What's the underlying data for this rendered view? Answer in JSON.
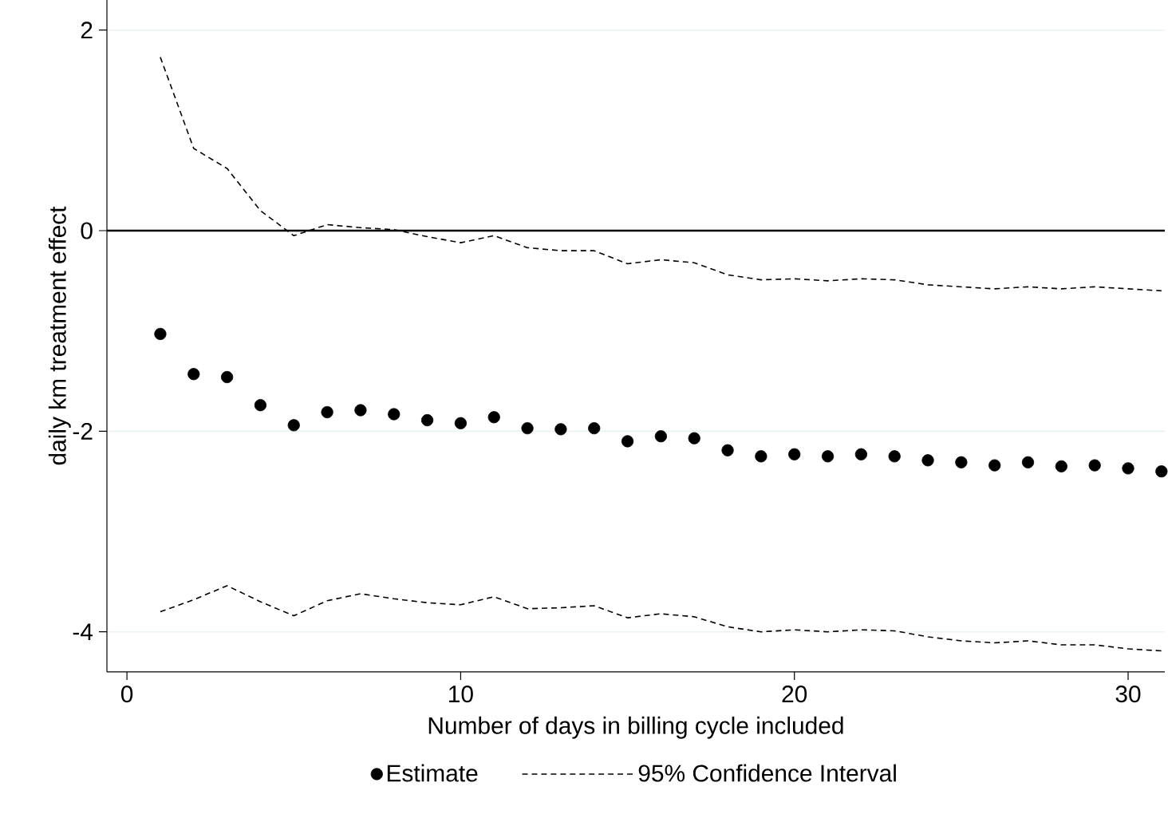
{
  "chart_data": {
    "type": "scatter",
    "xlabel": "Number of days in billing cycle included",
    "ylabel": "daily km treatment effect",
    "x": [
      1,
      2,
      3,
      4,
      5,
      6,
      7,
      8,
      9,
      10,
      11,
      12,
      13,
      14,
      15,
      16,
      17,
      18,
      19,
      20,
      21,
      22,
      23,
      24,
      25,
      26,
      27,
      28,
      29,
      30,
      31
    ],
    "series": [
      {
        "name": "Estimate",
        "color": "#000000",
        "marker": "circle",
        "values": [
          -1.03,
          -1.43,
          -1.46,
          -1.74,
          -1.94,
          -1.81,
          -1.79,
          -1.83,
          -1.89,
          -1.92,
          -1.86,
          -1.97,
          -1.98,
          -1.97,
          -2.1,
          -2.05,
          -2.07,
          -2.19,
          -2.25,
          -2.23,
          -2.25,
          -2.23,
          -2.25,
          -2.29,
          -2.31,
          -2.34,
          -2.31,
          -2.35,
          -2.34,
          -2.37,
          -2.4
        ]
      },
      {
        "name": "95% Confidence Interval",
        "type": "line",
        "color": "#000000",
        "line_style": "dashed",
        "marker": "none",
        "values": [
          1.73,
          0.82,
          0.62,
          0.2,
          -0.05,
          0.06,
          0.03,
          0.01,
          -0.06,
          -0.12,
          -0.05,
          -0.17,
          -0.2,
          -0.2,
          -0.33,
          -0.29,
          -0.32,
          -0.44,
          -0.49,
          -0.48,
          -0.5,
          -0.48,
          -0.49,
          -0.54,
          -0.56,
          -0.58,
          -0.56,
          -0.58,
          -0.56,
          -0.58,
          -0.6
        ]
      },
      {
        "type": "line",
        "color": "#000000",
        "line_style": "dashed",
        "marker": "none",
        "values": [
          -3.8,
          -3.68,
          -3.54,
          -3.7,
          -3.84,
          -3.69,
          -3.62,
          -3.67,
          -3.71,
          -3.73,
          -3.65,
          -3.77,
          -3.76,
          -3.74,
          -3.86,
          -3.82,
          -3.85,
          -3.95,
          -4.0,
          -3.98,
          -4.0,
          -3.98,
          -3.99,
          -4.05,
          -4.09,
          -4.11,
          -4.09,
          -4.13,
          -4.13,
          -4.17,
          -4.19
        ]
      }
    ],
    "xlim": [
      -0.6,
      31.1
    ],
    "ylim": [
      -4.4,
      2.3
    ],
    "xticks": [
      0,
      10,
      20,
      30
    ],
    "yticks": [
      -4,
      -2,
      0,
      2
    ],
    "grid": "y",
    "legend": "bottom",
    "ref_lines": [
      {
        "axis": "y",
        "value": 0,
        "color": "#000000",
        "line_style": "solid"
      }
    ]
  }
}
